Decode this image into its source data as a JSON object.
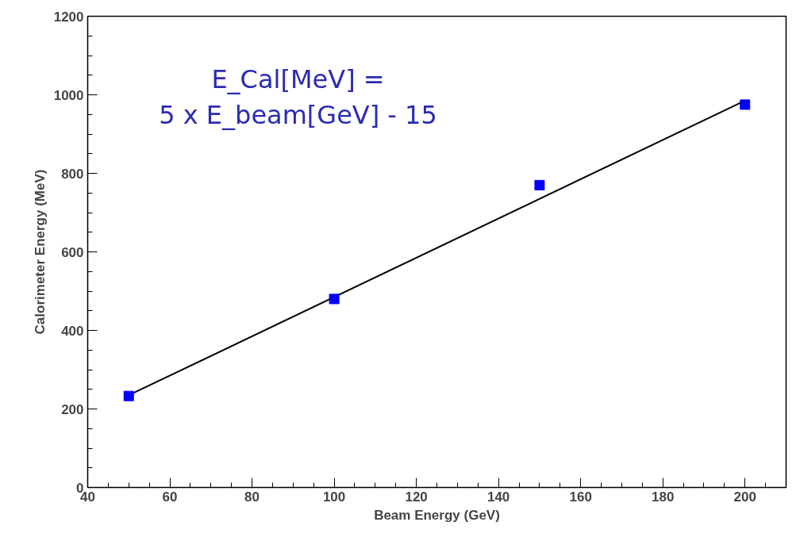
{
  "chart_data": {
    "type": "scatter",
    "xlabel": "Beam Energy (GeV)",
    "ylabel": "Calorimeter Energy (MeV)",
    "xlim": [
      40,
      210
    ],
    "xticks": [
      40,
      60,
      80,
      100,
      120,
      140,
      160,
      180,
      200
    ],
    "ylim": [
      0,
      1200
    ],
    "yticks": [
      0,
      200,
      400,
      600,
      800,
      1000,
      1200
    ],
    "grid": false,
    "annotations": [
      "E_Cal[MeV] =\n5 x E_beam[GeV] - 15"
    ],
    "series": [
      {
        "type": "line",
        "color": "#000000",
        "x": [
          50,
          200
        ],
        "values": [
          235,
          985
        ],
        "marker": "none",
        "line_style": "solid"
      },
      {
        "color": "#0000ff",
        "x": [
          50,
          100,
          150,
          200
        ],
        "values": [
          233,
          480,
          770,
          975
        ],
        "marker": "square"
      }
    ]
  }
}
